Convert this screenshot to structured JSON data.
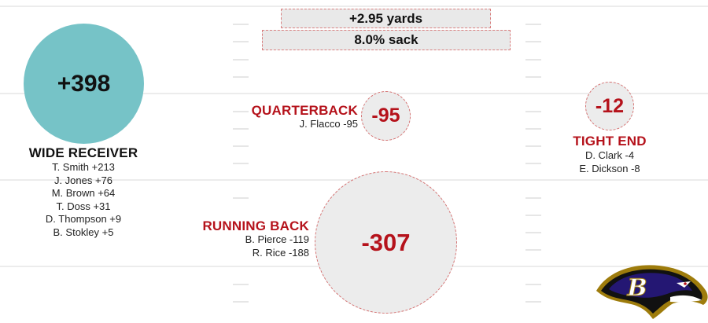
{
  "summary": {
    "yards": "+2.95 yards",
    "sack": "8.0% sack"
  },
  "positions": {
    "wide_receiver": {
      "title": "WIDE RECEIVER",
      "total": "+398",
      "players": [
        "T. Smith +213",
        "J. Jones +76",
        "M. Brown +64",
        "T. Doss +31",
        "D. Thompson +9",
        "B. Stokley +5"
      ]
    },
    "quarterback": {
      "title": "QUARTERBACK",
      "total": "-95",
      "players": [
        "J. Flacco -95"
      ]
    },
    "tight_end": {
      "title": "TIGHT END",
      "total": "-12",
      "players": [
        "D. Clark -4",
        "E. Dickson -8"
      ]
    },
    "running_back": {
      "title": "RUNNING BACK",
      "total": "-307",
      "players": [
        "B. Pierce -119",
        "R. Rice -188"
      ]
    }
  },
  "colors": {
    "positive": "#76c3c7",
    "negative_text": "#b5121b",
    "negative_fill": "#ececec",
    "team_purple": "#241773",
    "team_gold": "#9e7c0c"
  },
  "logo": {
    "icon": "ravens-logo-icon"
  }
}
